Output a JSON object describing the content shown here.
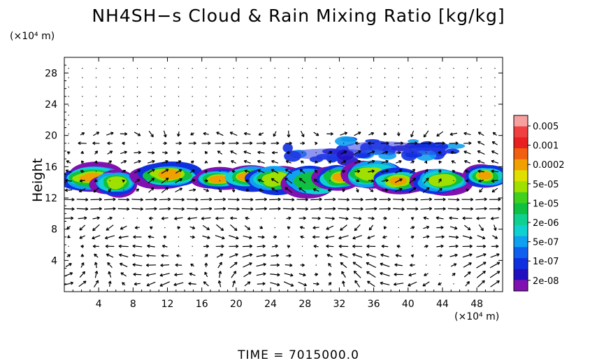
{
  "chart_data": {
    "type": "heatmap",
    "title": "NH4SH−s Cloud & Rain Mixing Ratio [kg/kg]",
    "ylabel": "Height",
    "xunit": "(×10⁴ m)",
    "yunit": "(×10⁴ m)",
    "footer": "TIME  =  7015000.0",
    "xlim": [
      0,
      51
    ],
    "ylim": [
      0,
      30
    ],
    "xticks": [
      4,
      8,
      12,
      16,
      20,
      24,
      28,
      32,
      36,
      40,
      44,
      48
    ],
    "yticks": [
      4,
      8,
      12,
      16,
      20,
      24,
      28
    ],
    "colorbar": {
      "labels": [
        "0.005",
        "0.001",
        "0.0002",
        "5e-05",
        "1e-05",
        "2e-06",
        "5e-07",
        "1e-07",
        "2e-08"
      ],
      "colors": [
        "#f7a0a0",
        "#f04040",
        "#e82020",
        "#f06010",
        "#f0a000",
        "#e0e000",
        "#a0e000",
        "#40d020",
        "#10c040",
        "#10d090",
        "#10d0d0",
        "#10a0f0",
        "#1060f0",
        "#1030e0",
        "#2010c0",
        "#8010b0"
      ]
    },
    "cloud_blobs": [
      {
        "x": 3.0,
        "y": 14.6,
        "rx": 3.2,
        "ry": 1.2,
        "level": 3
      },
      {
        "x": 5.8,
        "y": 14.0,
        "rx": 2.0,
        "ry": 1.2,
        "level": 2
      },
      {
        "x": 12.0,
        "y": 15.0,
        "rx": 3.2,
        "ry": 1.2,
        "level": 3
      },
      {
        "x": 18.0,
        "y": 14.4,
        "rx": 2.4,
        "ry": 1.0,
        "level": 3
      },
      {
        "x": 21.5,
        "y": 14.6,
        "rx": 2.6,
        "ry": 1.2,
        "level": 3
      },
      {
        "x": 24.5,
        "y": 14.4,
        "rx": 2.6,
        "ry": 1.4,
        "level": 2
      },
      {
        "x": 28.8,
        "y": 14.0,
        "rx": 2.6,
        "ry": 1.4,
        "level": 1
      },
      {
        "x": 32.0,
        "y": 14.6,
        "rx": 2.2,
        "ry": 1.2,
        "level": 3
      },
      {
        "x": 35.8,
        "y": 15.0,
        "rx": 2.8,
        "ry": 1.4,
        "level": 2
      },
      {
        "x": 38.8,
        "y": 14.2,
        "rx": 2.4,
        "ry": 1.1,
        "level": 3
      },
      {
        "x": 44.0,
        "y": 14.2,
        "rx": 2.6,
        "ry": 1.2,
        "level": 2
      },
      {
        "x": 49.0,
        "y": 14.8,
        "rx": 2.0,
        "ry": 1.1,
        "level": 3
      }
    ],
    "upper_layer": [
      {
        "x": 31.0,
        "y": 17.6,
        "rx": 5.0,
        "ry": 1.2
      },
      {
        "x": 37.0,
        "y": 18.4,
        "rx": 4.6,
        "ry": 1.4
      },
      {
        "x": 42.5,
        "y": 18.0,
        "rx": 3.0,
        "ry": 0.8
      }
    ]
  }
}
